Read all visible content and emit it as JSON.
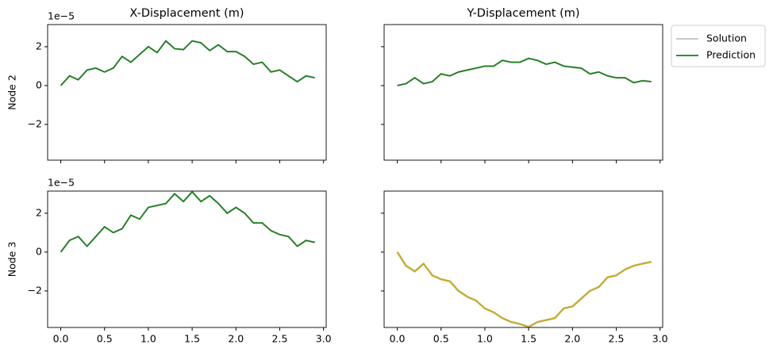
{
  "chart_data": [
    {
      "type": "line",
      "title": "X-Displacement (m)",
      "ylabel": "Node 2",
      "offset_text": "1e−5",
      "x": [
        0,
        0.1,
        0.2,
        0.3,
        0.4,
        0.5,
        0.6,
        0.7,
        0.8,
        0.9,
        1.0,
        1.1,
        1.2,
        1.3,
        1.4,
        1.5,
        1.6,
        1.7,
        1.8,
        1.9,
        2.0,
        2.1,
        2.2,
        2.3,
        2.4,
        2.5,
        2.6,
        2.7,
        2.8,
        2.9
      ],
      "xlim": [
        -0.15,
        3.03
      ],
      "xticks": [
        0,
        0.5,
        1,
        1.5,
        2,
        2.5,
        3
      ],
      "ylim": [
        -3.84,
        3.14
      ],
      "yticks": [
        {
          "value": -2,
          "label": "−2"
        },
        0,
        2
      ],
      "series": [
        {
          "name": "Solution",
          "color": "#c0c0c0",
          "values": [
            0,
            0.5,
            0.3,
            0.8,
            0.9,
            0.7,
            0.9,
            1.5,
            1.2,
            1.6,
            2.0,
            1.7,
            2.3,
            1.9,
            1.85,
            2.3,
            2.2,
            1.8,
            2.1,
            1.75,
            1.75,
            1.5,
            1.1,
            1.2,
            0.7,
            0.8,
            0.5,
            0.2,
            0.5,
            0.4
          ]
        },
        {
          "name": "Prediction",
          "color": "#118011",
          "values": [
            0,
            0.5,
            0.3,
            0.8,
            0.9,
            0.7,
            0.9,
            1.5,
            1.2,
            1.6,
            2.0,
            1.7,
            2.3,
            1.9,
            1.85,
            2.3,
            2.2,
            1.8,
            2.1,
            1.75,
            1.75,
            1.5,
            1.1,
            1.2,
            0.7,
            0.8,
            0.5,
            0.2,
            0.5,
            0.4
          ]
        }
      ]
    },
    {
      "type": "line",
      "title": "Y-Displacement (m)",
      "legend": "outside right",
      "x": [
        0,
        0.1,
        0.2,
        0.3,
        0.4,
        0.5,
        0.6,
        0.7,
        0.8,
        0.9,
        1.0,
        1.1,
        1.2,
        1.3,
        1.4,
        1.5,
        1.6,
        1.7,
        1.8,
        1.9,
        2.0,
        2.1,
        2.2,
        2.3,
        2.4,
        2.5,
        2.6,
        2.7,
        2.8,
        2.9
      ],
      "xlim": [
        -0.15,
        3.03
      ],
      "xticks": [
        0,
        0.5,
        1,
        1.5,
        2,
        2.5,
        3
      ],
      "ylim": [
        -3.84,
        3.14
      ],
      "yticks": [
        -2,
        0,
        2
      ],
      "series": [
        {
          "name": "Solution",
          "color": "#c0c0c0",
          "values": [
            0,
            0.1,
            0.4,
            0.1,
            0.2,
            0.6,
            0.5,
            0.7,
            0.8,
            0.9,
            1.0,
            1.0,
            1.3,
            1.2,
            1.2,
            1.4,
            1.3,
            1.1,
            1.2,
            1.0,
            0.95,
            0.9,
            0.6,
            0.7,
            0.5,
            0.4,
            0.4,
            0.15,
            0.25,
            0.2
          ]
        },
        {
          "name": "Prediction",
          "color": "#118011",
          "values": [
            0,
            0.1,
            0.4,
            0.1,
            0.2,
            0.6,
            0.5,
            0.7,
            0.8,
            0.9,
            1.0,
            1.0,
            1.3,
            1.2,
            1.2,
            1.4,
            1.3,
            1.1,
            1.2,
            1.0,
            0.95,
            0.9,
            0.6,
            0.7,
            0.5,
            0.4,
            0.4,
            0.15,
            0.25,
            0.2
          ]
        }
      ]
    },
    {
      "type": "line",
      "ylabel": "Node 3",
      "offset_text": "1e−5",
      "x": [
        0,
        0.1,
        0.2,
        0.3,
        0.4,
        0.5,
        0.6,
        0.7,
        0.8,
        0.9,
        1.0,
        1.1,
        1.2,
        1.3,
        1.4,
        1.5,
        1.6,
        1.7,
        1.8,
        1.9,
        2.0,
        2.1,
        2.2,
        2.3,
        2.4,
        2.5,
        2.6,
        2.7,
        2.8,
        2.9
      ],
      "xlim": [
        -0.15,
        3.03
      ],
      "xticks": [
        {
          "value": 0,
          "label": "0.0"
        },
        {
          "value": 0.5,
          "label": "0.5"
        },
        {
          "value": 1,
          "label": "1.0"
        },
        {
          "value": 1.5,
          "label": "1.5"
        },
        {
          "value": 2,
          "label": "2.0"
        },
        {
          "value": 2.5,
          "label": "2.5"
        },
        {
          "value": 3,
          "label": "3.0"
        }
      ],
      "ylim": [
        -3.88,
        3.14
      ],
      "yticks": [
        {
          "value": -2,
          "label": "−2"
        },
        0,
        2
      ],
      "series": [
        {
          "name": "Solution",
          "color": "#c0c0c0",
          "values": [
            0,
            0.6,
            0.8,
            0.3,
            0.8,
            1.3,
            1.0,
            1.2,
            1.9,
            1.7,
            2.3,
            2.4,
            2.5,
            3.0,
            2.6,
            3.1,
            2.6,
            2.9,
            2.5,
            2.0,
            2.3,
            2.0,
            1.5,
            1.5,
            1.1,
            0.9,
            0.8,
            0.3,
            0.6,
            0.5
          ]
        },
        {
          "name": "Prediction",
          "color": "#118011",
          "values": [
            0,
            0.6,
            0.8,
            0.3,
            0.8,
            1.3,
            1.0,
            1.2,
            1.9,
            1.7,
            2.3,
            2.4,
            2.5,
            3.0,
            2.6,
            3.1,
            2.6,
            2.9,
            2.5,
            2.0,
            2.3,
            2.0,
            1.5,
            1.5,
            1.1,
            0.9,
            0.8,
            0.3,
            0.6,
            0.5
          ]
        }
      ]
    },
    {
      "type": "line",
      "x": [
        0,
        0.1,
        0.2,
        0.3,
        0.4,
        0.5,
        0.6,
        0.7,
        0.8,
        0.9,
        1.0,
        1.1,
        1.2,
        1.3,
        1.4,
        1.5,
        1.6,
        1.7,
        1.8,
        1.9,
        2.0,
        2.1,
        2.2,
        2.3,
        2.4,
        2.5,
        2.6,
        2.7,
        2.8,
        2.9
      ],
      "xlim": [
        -0.15,
        3.03
      ],
      "xticks": [
        {
          "value": 0,
          "label": "0.0"
        },
        {
          "value": 0.5,
          "label": "0.5"
        },
        {
          "value": 1,
          "label": "1.0"
        },
        {
          "value": 1.5,
          "label": "1.5"
        },
        {
          "value": 2,
          "label": "2.0"
        },
        {
          "value": 2.5,
          "label": "2.5"
        },
        {
          "value": 3,
          "label": "3.0"
        }
      ],
      "ylim": [
        -3.88,
        3.14
      ],
      "yticks": [
        -2,
        0,
        2
      ],
      "series": [
        {
          "name": "Solution",
          "color": "#a0a0a0",
          "values": [
            0,
            -0.7,
            -1.0,
            -0.6,
            -1.2,
            -1.4,
            -1.5,
            -2.0,
            -2.3,
            -2.5,
            -2.9,
            -3.1,
            -3.4,
            -3.6,
            -3.7,
            -3.85,
            -3.6,
            -3.5,
            -3.4,
            -2.9,
            -2.8,
            -2.4,
            -2.0,
            -1.8,
            -1.3,
            -1.2,
            -0.9,
            -0.7,
            -0.6,
            -0.5
          ]
        },
        {
          "name": "Prediction",
          "color": "#d4b000",
          "values": [
            0,
            -0.7,
            -1.0,
            -0.6,
            -1.2,
            -1.4,
            -1.5,
            -2.0,
            -2.3,
            -2.5,
            -2.9,
            -3.1,
            -3.4,
            -3.6,
            -3.7,
            -3.85,
            -3.6,
            -3.5,
            -3.4,
            -2.9,
            -2.8,
            -2.4,
            -2.0,
            -1.8,
            -1.3,
            -1.2,
            -0.9,
            -0.7,
            -0.6,
            -0.5
          ]
        }
      ]
    }
  ]
}
